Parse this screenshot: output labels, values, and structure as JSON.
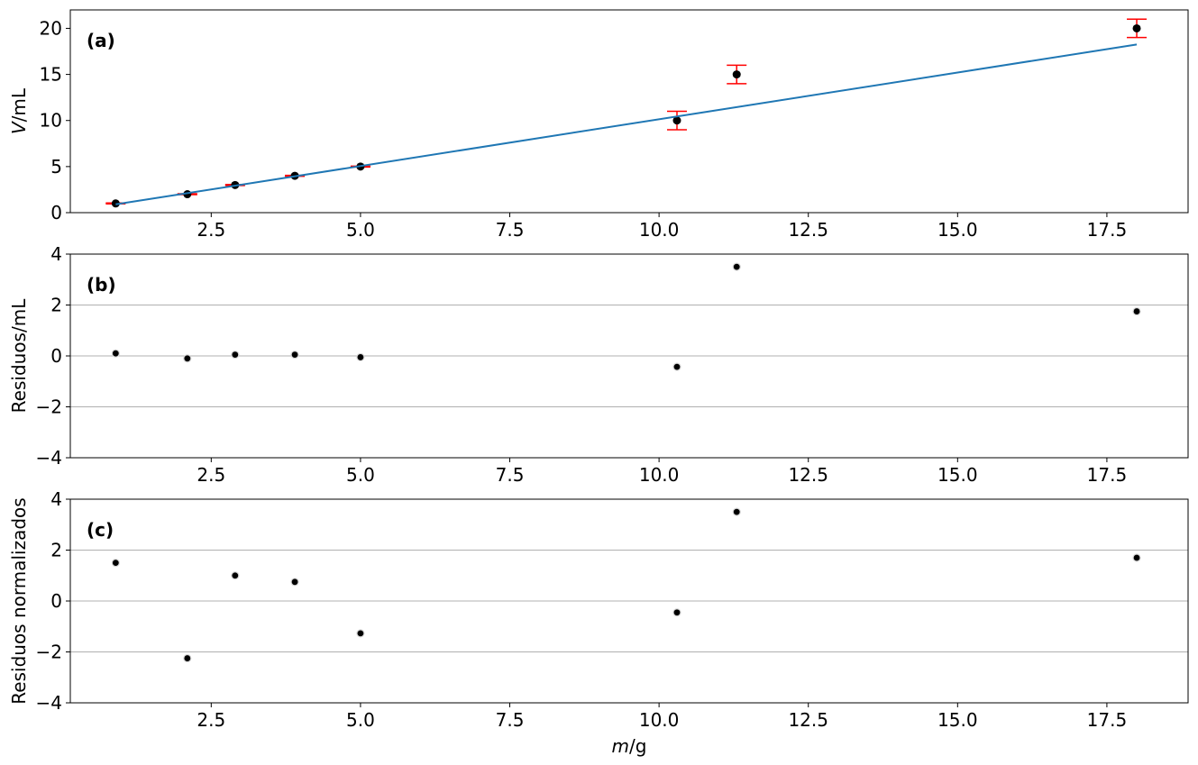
{
  "chart_data": [
    {
      "panel": "(a)",
      "type": "scatter",
      "xlabel_italic": "V",
      "ylabel_unit": "/mL",
      "ylim": [
        0,
        22
      ],
      "xlim": [
        0.14,
        18.86
      ],
      "yticks": [
        0,
        5,
        10,
        15,
        20
      ],
      "xticks": [
        2.5,
        5.0,
        7.5,
        10.0,
        12.5,
        15.0,
        17.5
      ],
      "grid": false,
      "series": [
        {
          "kind": "errorbar",
          "x": [
            0.9,
            2.1,
            2.9,
            3.9,
            5.0,
            10.3,
            11.3,
            18.0
          ],
          "y": [
            1,
            2,
            3,
            4,
            5,
            10,
            15,
            20
          ],
          "yerr": [
            0.05,
            0.05,
            0.05,
            0.05,
            0.05,
            1.0,
            1.0,
            1.0
          ],
          "marker_color": "#000000",
          "errorbar_color": "#ff0000"
        },
        {
          "kind": "line",
          "x": [
            0.9,
            18.0
          ],
          "y": [
            0.9,
            18.25
          ],
          "color": "#1f77b4"
        }
      ]
    },
    {
      "panel": "(b)",
      "type": "scatter",
      "ylabel": "Residuos/mL",
      "ylim": [
        -4,
        4
      ],
      "xlim": [
        0.14,
        18.86
      ],
      "yticks": [
        -4,
        -2,
        0,
        2,
        4
      ],
      "xticks": [
        2.5,
        5.0,
        7.5,
        10.0,
        12.5,
        15.0,
        17.5
      ],
      "grid": true,
      "series": [
        {
          "x": [
            0.9,
            2.1,
            2.9,
            3.9,
            5.0,
            10.3,
            11.3,
            18.0
          ],
          "y": [
            0.1,
            -0.1,
            0.05,
            0.05,
            -0.05,
            -0.43,
            3.5,
            1.75
          ],
          "marker_color": "#000000"
        }
      ]
    },
    {
      "panel": "(c)",
      "type": "scatter",
      "ylabel": "Residuos normalizados",
      "xlabel_italic": "m",
      "xlabel_unit": "/g",
      "ylim": [
        -4,
        4
      ],
      "xlim": [
        0.14,
        18.86
      ],
      "yticks": [
        -4,
        -2,
        0,
        2,
        4
      ],
      "xticks": [
        2.5,
        5.0,
        7.5,
        10.0,
        12.5,
        15.0,
        17.5
      ],
      "grid": true,
      "series": [
        {
          "x": [
            0.9,
            2.1,
            2.9,
            3.9,
            5.0,
            10.3,
            11.3,
            18.0
          ],
          "y": [
            1.5,
            -2.25,
            1.0,
            0.75,
            -1.27,
            -0.45,
            3.5,
            1.7
          ],
          "marker_color": "#000000"
        }
      ]
    }
  ]
}
